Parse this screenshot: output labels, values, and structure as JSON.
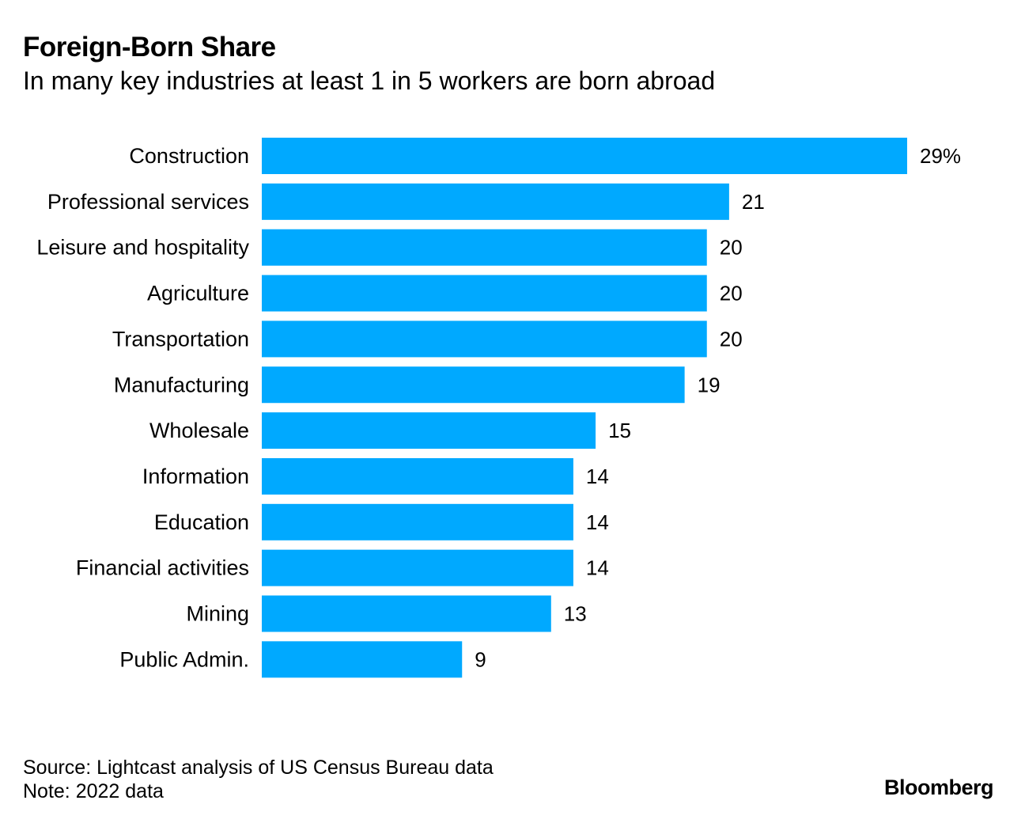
{
  "chart_data": {
    "type": "bar",
    "orientation": "horizontal",
    "title": "Foreign-Born Share",
    "subtitle": "In many key industries at least 1 in 5 workers are born abroad",
    "categories": [
      "Construction",
      "Professional services",
      "Leisure and hospitality",
      "Agriculture",
      "Transportation",
      "Manufacturing",
      "Wholesale",
      "Information",
      "Education",
      "Financial activities",
      "Mining",
      "Public Admin."
    ],
    "values": [
      29,
      21,
      20,
      20,
      20,
      19,
      15,
      14,
      14,
      14,
      13,
      9
    ],
    "value_labels": [
      "29%",
      "21",
      "20",
      "20",
      "20",
      "19",
      "15",
      "14",
      "14",
      "14",
      "13",
      "9"
    ],
    "unit": "%",
    "xlim": [
      0,
      29
    ],
    "xlabel": "",
    "ylabel": "",
    "grid": false,
    "bar_color": "#00a9ff"
  },
  "footer": {
    "source": "Source: Lightcast analysis of US Census Bureau data",
    "note": "Note: 2022 data",
    "brand": "Bloomberg"
  }
}
